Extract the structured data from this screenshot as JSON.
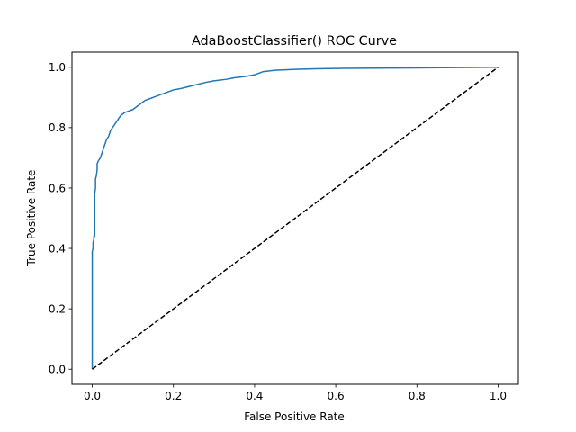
{
  "chart_data": {
    "type": "line",
    "title": "AdaBoostClassifier() ROC Curve",
    "xlabel": "False Positive Rate",
    "ylabel": "True Positive Rate",
    "xlim": [
      -0.05,
      1.05
    ],
    "ylim": [
      -0.05,
      1.05
    ],
    "xticks": [
      0.0,
      0.2,
      0.4,
      0.6,
      0.8,
      1.0
    ],
    "yticks": [
      0.0,
      0.2,
      0.4,
      0.6,
      0.8,
      1.0
    ],
    "xtick_labels": [
      "0.0",
      "0.2",
      "0.4",
      "0.6",
      "0.8",
      "1.0"
    ],
    "ytick_labels": [
      "0.0",
      "0.2",
      "0.4",
      "0.6",
      "0.8",
      "1.0"
    ],
    "grid": false,
    "series": [
      {
        "color": "#1f77b4",
        "style": "solid",
        "x": [
          0.0,
          0.0,
          0.002,
          0.002,
          0.004,
          0.004,
          0.006,
          0.006,
          0.008,
          0.008,
          0.01,
          0.012,
          0.012,
          0.015,
          0.02,
          0.025,
          0.03,
          0.035,
          0.04,
          0.045,
          0.05,
          0.055,
          0.06,
          0.065,
          0.07,
          0.075,
          0.08,
          0.09,
          0.1,
          0.11,
          0.12,
          0.13,
          0.14,
          0.15,
          0.17,
          0.2,
          0.22,
          0.25,
          0.28,
          0.3,
          0.33,
          0.35,
          0.38,
          0.4,
          0.42,
          0.45,
          0.5,
          0.55,
          0.6,
          0.7,
          0.8,
          0.9,
          1.0
        ],
        "y": [
          0.0,
          0.39,
          0.4,
          0.42,
          0.43,
          0.44,
          0.44,
          0.58,
          0.6,
          0.63,
          0.64,
          0.66,
          0.68,
          0.69,
          0.7,
          0.72,
          0.74,
          0.76,
          0.77,
          0.79,
          0.8,
          0.81,
          0.82,
          0.83,
          0.84,
          0.845,
          0.85,
          0.855,
          0.86,
          0.87,
          0.88,
          0.89,
          0.895,
          0.9,
          0.91,
          0.925,
          0.93,
          0.94,
          0.95,
          0.955,
          0.96,
          0.965,
          0.97,
          0.975,
          0.985,
          0.99,
          0.993,
          0.995,
          0.996,
          0.997,
          0.998,
          0.999,
          1.0
        ]
      },
      {
        "color": "#000000",
        "style": "dashed",
        "x": [
          0.0,
          1.0
        ],
        "y": [
          0.0,
          1.0
        ]
      }
    ]
  }
}
